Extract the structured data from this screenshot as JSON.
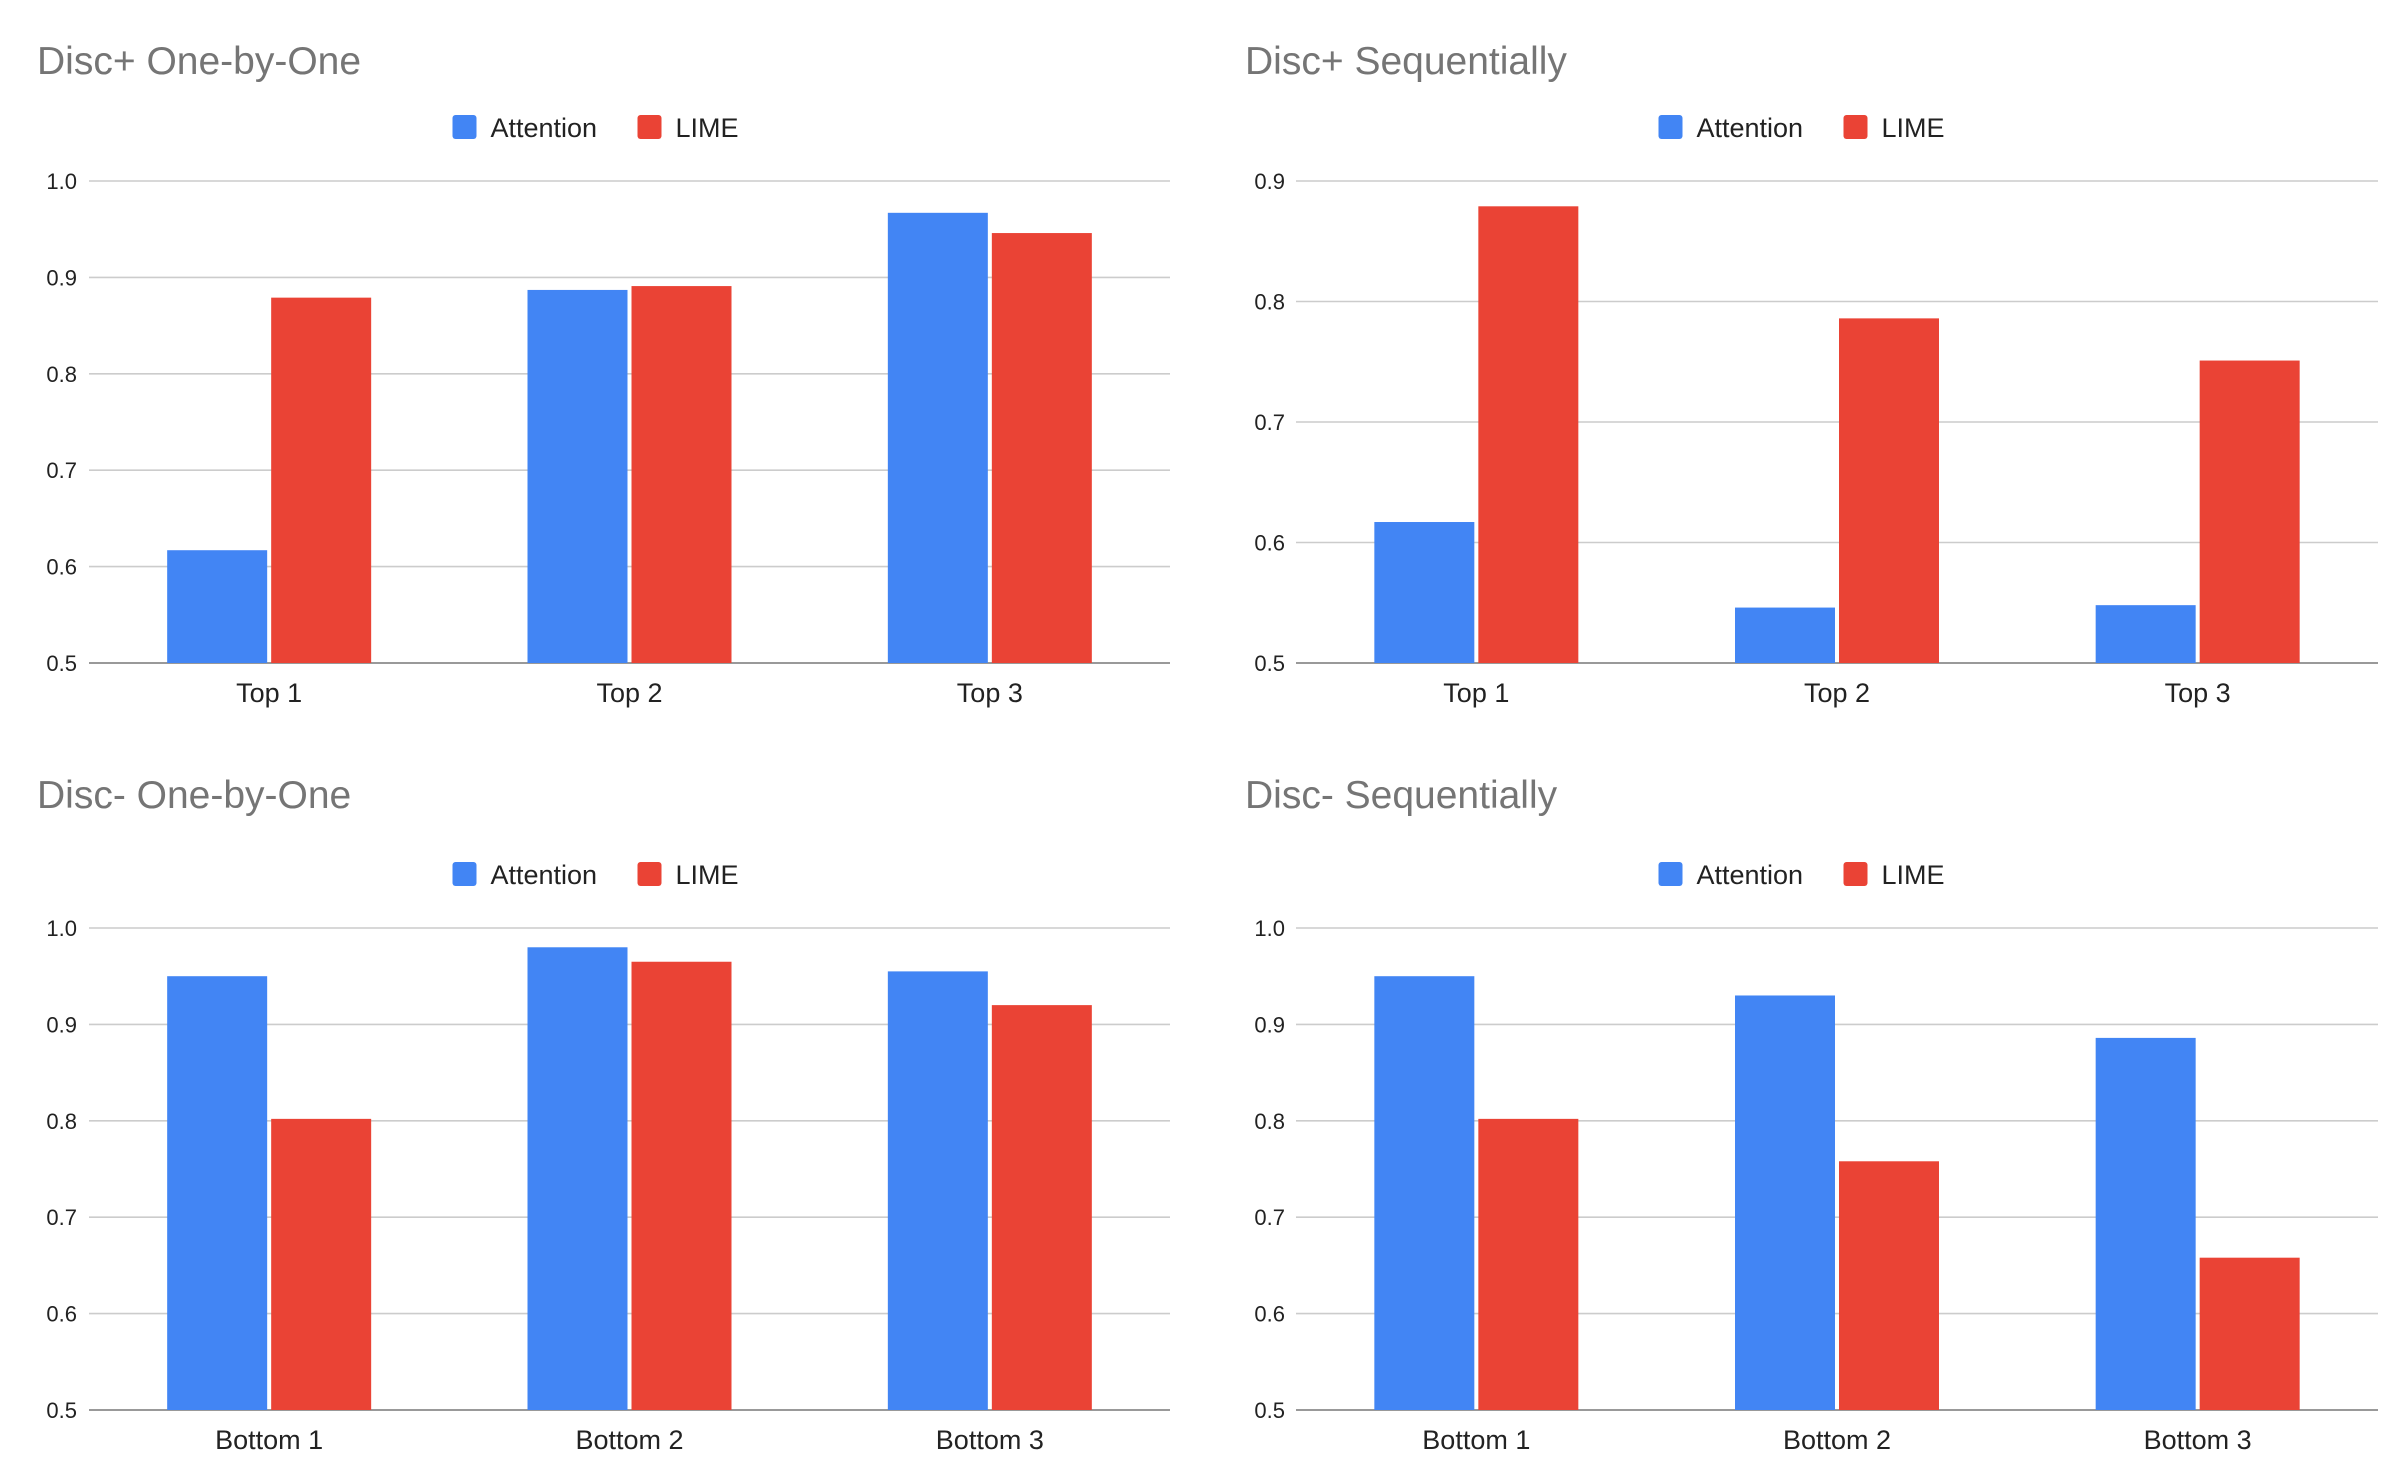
{
  "colors": {
    "attention": "#4285F4",
    "lime": "#EA4335"
  },
  "legend_labels": [
    "Attention",
    "LIME"
  ],
  "chart_data": [
    {
      "type": "bar",
      "title": "Disc+ One-by-One",
      "categories": [
        "Top 1",
        "Top 2",
        "Top 3"
      ],
      "series": [
        {
          "name": "Attention",
          "values": [
            0.617,
            0.887,
            0.967
          ]
        },
        {
          "name": "LIME",
          "values": [
            0.879,
            0.891,
            0.946
          ]
        }
      ],
      "ylim": [
        0.5,
        1.0
      ],
      "yticks": [
        0.5,
        0.6,
        0.7,
        0.8,
        0.9,
        1.0
      ],
      "ytick_labels": [
        "0.5",
        "0.6",
        "0.7",
        "0.8",
        "0.9",
        "1.0"
      ],
      "xlabel": "",
      "ylabel": "",
      "legend": "top-center",
      "grid": true
    },
    {
      "type": "bar",
      "title": "Disc+ Sequentially",
      "categories": [
        "Top 1",
        "Top 2",
        "Top 3"
      ],
      "series": [
        {
          "name": "Attention",
          "values": [
            0.617,
            0.546,
            0.548
          ]
        },
        {
          "name": "LIME",
          "values": [
            0.879,
            0.786,
            0.751
          ]
        }
      ],
      "ylim": [
        0.5,
        0.9
      ],
      "yticks": [
        0.5,
        0.6,
        0.7,
        0.8,
        0.9
      ],
      "ytick_labels": [
        "0.5",
        "0.6",
        "0.7",
        "0.8",
        "0.9"
      ],
      "xlabel": "",
      "ylabel": "",
      "legend": "top-center",
      "grid": true
    },
    {
      "type": "bar",
      "title": "Disc- One-by-One",
      "categories": [
        "Bottom 1",
        "Bottom 2",
        "Bottom 3"
      ],
      "series": [
        {
          "name": "Attention",
          "values": [
            0.95,
            0.98,
            0.955
          ]
        },
        {
          "name": "LIME",
          "values": [
            0.802,
            0.965,
            0.92
          ]
        }
      ],
      "ylim": [
        0.5,
        1.0
      ],
      "yticks": [
        0.5,
        0.6,
        0.7,
        0.8,
        0.9,
        1.0
      ],
      "ytick_labels": [
        "0.5",
        "0.6",
        "0.7",
        "0.8",
        "0.9",
        "1.0"
      ],
      "xlabel": "",
      "ylabel": "",
      "legend": "top-center",
      "grid": true
    },
    {
      "type": "bar",
      "title": "Disc- Sequentially",
      "categories": [
        "Bottom 1",
        "Bottom 2",
        "Bottom 3"
      ],
      "series": [
        {
          "name": "Attention",
          "values": [
            0.95,
            0.93,
            0.886
          ]
        },
        {
          "name": "LIME",
          "values": [
            0.802,
            0.758,
            0.658
          ]
        }
      ],
      "ylim": [
        0.5,
        1.0
      ],
      "yticks": [
        0.5,
        0.6,
        0.7,
        0.8,
        0.9,
        1.0
      ],
      "ytick_labels": [
        "0.5",
        "0.6",
        "0.7",
        "0.8",
        "0.9",
        "1.0"
      ],
      "xlabel": "",
      "ylabel": "",
      "legend": "top-center",
      "grid": true
    }
  ]
}
